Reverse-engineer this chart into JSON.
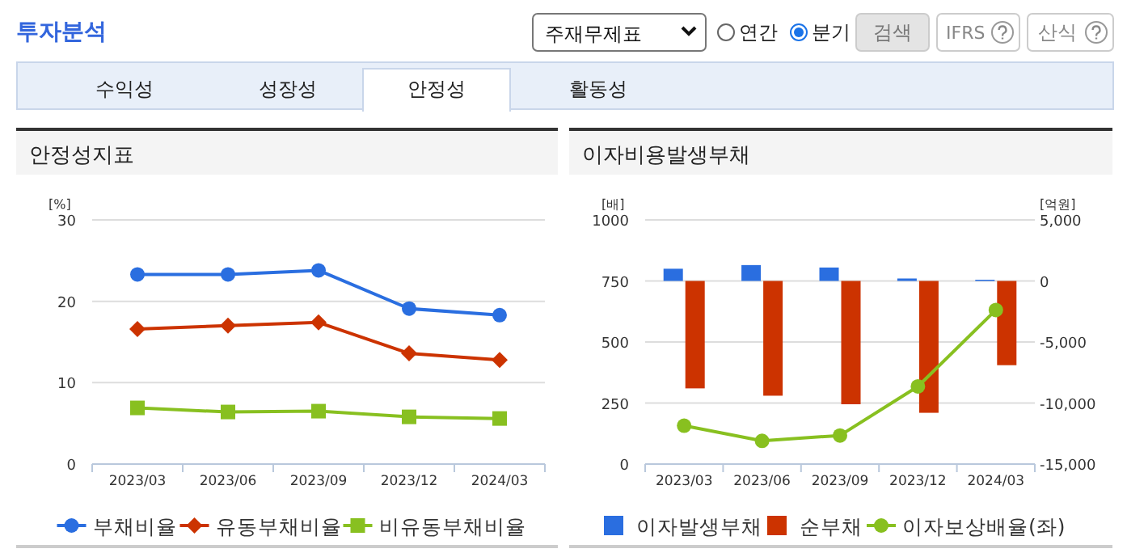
{
  "chart_data": [
    {
      "type": "line",
      "title": "안정성지표",
      "ylabel": "[%]",
      "categories": [
        "2023/03",
        "2023/06",
        "2023/09",
        "2023/12",
        "2024/03"
      ],
      "series": [
        {
          "name": "부채비율",
          "color": "#2a6ee0",
          "marker": "circle",
          "values": [
            23.3,
            23.3,
            23.8,
            19.1,
            18.3
          ]
        },
        {
          "name": "유동부채비율",
          "color": "#cc3300",
          "marker": "diamond",
          "values": [
            16.6,
            17.0,
            17.4,
            13.6,
            12.8
          ]
        },
        {
          "name": "비유동부채비율",
          "color": "#88c020",
          "marker": "square",
          "values": [
            6.9,
            6.4,
            6.5,
            5.8,
            5.6
          ]
        }
      ],
      "ylim": [
        0,
        30
      ],
      "yticks": [
        0,
        10,
        20,
        30
      ],
      "grid": "y",
      "legend": "bottom",
      "line_style": "solid",
      "annotations": [
        "투자분석",
        "주재무제표",
        "연간",
        "분기",
        "검색",
        "IFRS",
        "산식",
        "수익성",
        "성장성",
        "안정성",
        "활동성"
      ]
    },
    {
      "type": "bar",
      "title": "이자비용발생부채",
      "ylabel": "[배]",
      "y2label": "[억원]",
      "categories": [
        "2023/03",
        "2023/06",
        "2023/09",
        "2023/12",
        "2024/03"
      ],
      "series": [
        {
          "name": "이자발생부채",
          "color": "#2a6ee0",
          "axis": "y2",
          "values": [
            1000,
            1300,
            1100,
            200,
            100
          ]
        },
        {
          "name": "순부채",
          "color": "#cc3300",
          "axis": "y2",
          "values": [
            -8800,
            -9400,
            -10100,
            -10800,
            -6900
          ]
        },
        {
          "name": "이자보상배율(좌)",
          "type": "line",
          "color": "#88c020",
          "marker": "circle",
          "values": [
            157,
            95,
            117,
            318,
            631
          ]
        }
      ],
      "ylim": [
        0,
        1000
      ],
      "yticks": [
        0,
        250,
        500,
        750,
        1000
      ],
      "y2lim": [
        -15000,
        5000
      ],
      "y2ticks": [
        {
          "value": -15000,
          "label": "-15,000"
        },
        {
          "value": -10000,
          "label": "-10,000"
        },
        {
          "value": -5000,
          "label": "-5,000"
        },
        0,
        {
          "value": 5000,
          "label": "5,000"
        }
      ],
      "grid": "y",
      "legend": "bottom",
      "line_style": "solid"
    }
  ]
}
